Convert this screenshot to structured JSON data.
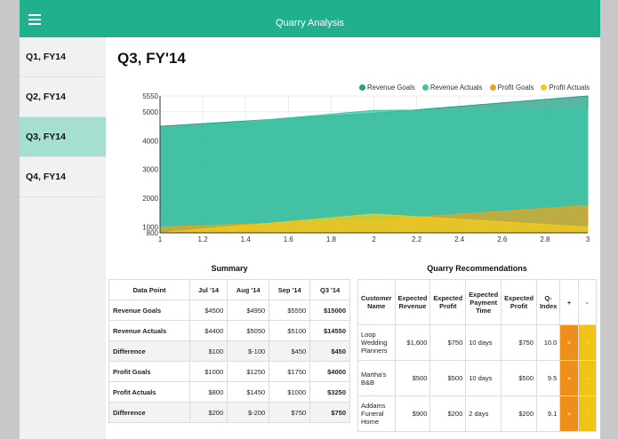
{
  "app": {
    "title": "Quarry Analysis"
  },
  "sidebar": {
    "items": [
      {
        "label": "Q1, FY14",
        "active": false
      },
      {
        "label": "Q2, FY14",
        "active": false
      },
      {
        "label": "Q3, FY14",
        "active": true
      },
      {
        "label": "Q4, FY14",
        "active": false
      }
    ]
  },
  "main": {
    "title": "Q3, FY'14"
  },
  "legend": [
    {
      "label": "Revenue Goals",
      "color": "#1ea085"
    },
    {
      "label": "Revenue Actuals",
      "color": "#3cc4a6"
    },
    {
      "label": "Profit Goals",
      "color": "#e6a423"
    },
    {
      "label": "Profit Actuals",
      "color": "#f1cc1c"
    }
  ],
  "chart_data": {
    "type": "area",
    "x": [
      1,
      2,
      3
    ],
    "series": [
      {
        "name": "Revenue Goals",
        "values": [
          4500,
          4950,
          5550
        ],
        "color": "#1ea085"
      },
      {
        "name": "Revenue Actuals",
        "values": [
          4400,
          5050,
          5100
        ],
        "color": "#3cc4a6"
      },
      {
        "name": "Profit Goals",
        "values": [
          1000,
          1250,
          1750
        ],
        "color": "#e6a423"
      },
      {
        "name": "Profit Actuals",
        "values": [
          800,
          1450,
          1000
        ],
        "color": "#f1cc1c"
      }
    ],
    "xticks": [
      "1",
      "1.2",
      "1.4",
      "1.6",
      "1.8",
      "2",
      "2.2",
      "2.4",
      "2.6",
      "2.8",
      "3"
    ],
    "yticks": [
      "800",
      "1000",
      "2000",
      "3000",
      "4000",
      "5000",
      "5550"
    ],
    "xlim": [
      1,
      3
    ],
    "ylim": [
      800,
      5550
    ],
    "grid": true,
    "legend_position": "top-right"
  },
  "summary": {
    "title": "Summary",
    "headers": [
      "Data Point",
      "Jul '14",
      "Aug '14",
      "Sep '14",
      "Q3 '14"
    ],
    "rows": [
      [
        "Revenue Goals",
        "$4500",
        "$4950",
        "$5550",
        "$15000"
      ],
      [
        "Revenue Actuals",
        "$4400",
        "$5050",
        "$5100",
        "$14550"
      ],
      [
        "Difference",
        "$100",
        "$-100",
        "$450",
        "$450"
      ],
      [
        "Profit Goals",
        "$1000",
        "$1250",
        "$1750",
        "$4000"
      ],
      [
        "Profit Actuals",
        "$800",
        "$1450",
        "$1000",
        "$3250"
      ],
      [
        "Difference",
        "$200",
        "$-200",
        "$750",
        "$750"
      ]
    ]
  },
  "recommendations": {
    "title": "Quarry Recommendations",
    "headers": [
      "Customer Name",
      "Expected Revenue",
      "Expected Profit",
      "Expected Payment Time",
      "Expected Profit",
      "Q-Index",
      "+",
      "-"
    ],
    "rows": [
      [
        "Loop Wedding Planners",
        "$1,600",
        "$750",
        "10 days",
        "$750",
        "10.0",
        "+",
        "-"
      ],
      [
        "Martha's B&B",
        "$500",
        "$500",
        "10 days",
        "$500",
        "9.5",
        "+",
        "-"
      ],
      [
        "Addams Funeral Home",
        "$900",
        "$200",
        "2 days",
        "$200",
        "9.1",
        "+",
        "-"
      ]
    ]
  }
}
